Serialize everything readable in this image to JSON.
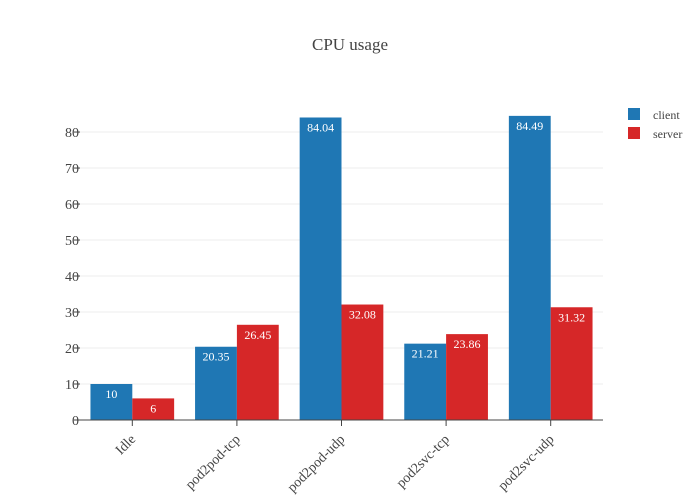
{
  "chart_data": {
    "type": "bar",
    "title": "CPU usage",
    "xlabel": "",
    "ylabel": "",
    "categories": [
      "Idle",
      "pod2pod-tcp",
      "pod2pod-udp",
      "pod2svc-tcp",
      "pod2svc-udp"
    ],
    "series": [
      {
        "name": "client",
        "color": "#1f77b4",
        "values": [
          10,
          20.35,
          84.04,
          21.21,
          84.49
        ]
      },
      {
        "name": "server",
        "color": "#d62728",
        "values": [
          6,
          26.45,
          32.08,
          23.86,
          31.32
        ]
      }
    ],
    "data_labels": [
      [
        "10",
        "20.35",
        "84.04",
        "21.21",
        "84.49"
      ],
      [
        "6",
        "26.45",
        "32.08",
        "23.86",
        "31.32"
      ]
    ],
    "ylim": [
      0,
      88.9
    ],
    "yticks": [
      0,
      10,
      20,
      30,
      40,
      50,
      60,
      70,
      80
    ],
    "grid": true,
    "legend_position": "top-right",
    "x_tick_rotation": "45deg",
    "background": "#ffffff"
  }
}
